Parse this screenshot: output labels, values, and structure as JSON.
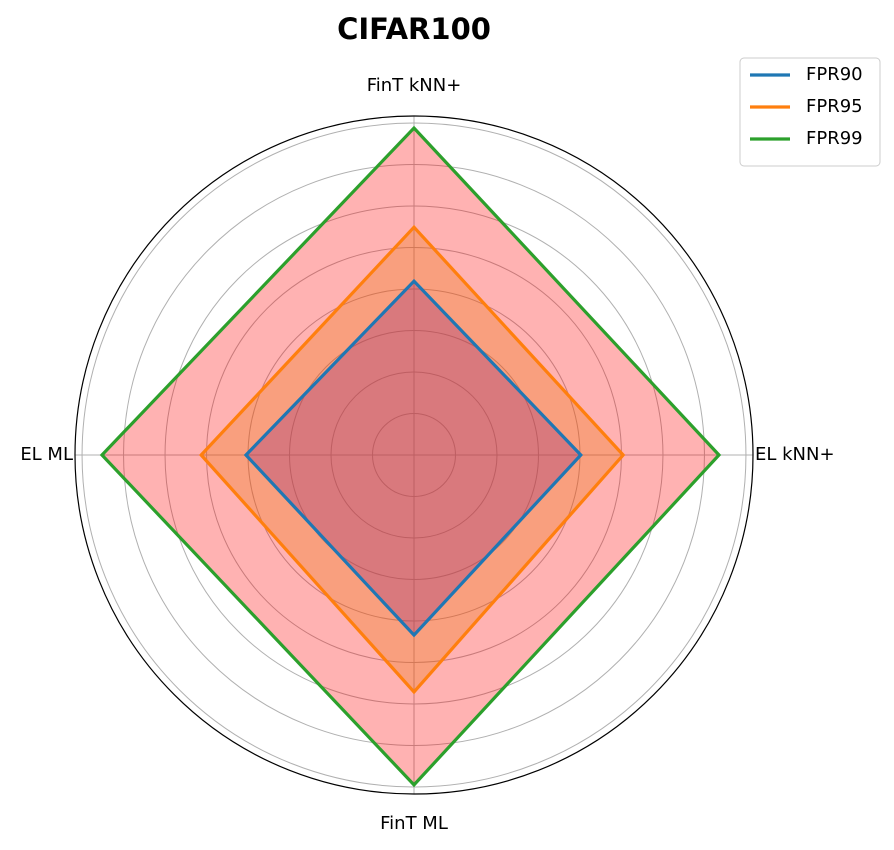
{
  "chart_data": {
    "type": "radar",
    "title": "CIFAR100",
    "categories": [
      "EL kNN+",
      "FinT kNN+",
      "EL ML",
      "FinT ML"
    ],
    "series": [
      {
        "name": "FPR90",
        "color": "#1f77b4",
        "fill": "#8e217a",
        "values": [
          40.2,
          41.9,
          40.5,
          43.4
        ]
      },
      {
        "name": "FPR95",
        "color": "#ff7f0e",
        "fill": "#eb7305",
        "values": [
          50.4,
          54.9,
          51.3,
          57.1
        ]
      },
      {
        "name": "FPR99",
        "color": "#2ca02c",
        "fill": "#ff0000",
        "values": [
          73.5,
          78.8,
          75.2,
          79.5
        ]
      }
    ],
    "ylim": [
      0,
      81.7
    ],
    "yticks": [
      10,
      20,
      30,
      40,
      50,
      60,
      70,
      80
    ],
    "grid": true,
    "legend": "upper right"
  }
}
